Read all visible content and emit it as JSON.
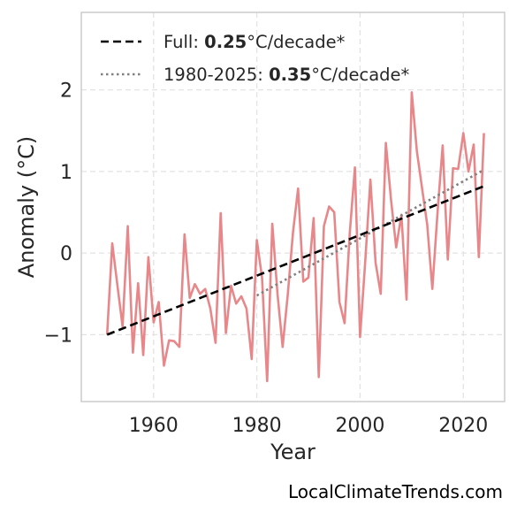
{
  "chart_data": {
    "type": "line",
    "xlabel": "Year",
    "ylabel": "Anomaly (°C)",
    "xlim": [
      1946,
      2028
    ],
    "ylim": [
      -1.82,
      2.95
    ],
    "xticks": [
      1960,
      1980,
      2000,
      2020
    ],
    "yticks": [
      -1,
      0,
      1,
      2
    ],
    "ytick_labels": [
      "−1",
      "0",
      "1",
      "2"
    ],
    "grid": true,
    "legend_position": "top-left",
    "x": [
      1951,
      1952,
      1953,
      1954,
      1955,
      1956,
      1957,
      1958,
      1959,
      1960,
      1961,
      1962,
      1963,
      1964,
      1965,
      1966,
      1967,
      1968,
      1969,
      1970,
      1971,
      1972,
      1973,
      1974,
      1975,
      1976,
      1977,
      1978,
      1979,
      1980,
      1981,
      1982,
      1983,
      1984,
      1985,
      1986,
      1987,
      1988,
      1989,
      1990,
      1991,
      1992,
      1993,
      1994,
      1995,
      1996,
      1997,
      1998,
      1999,
      2000,
      2001,
      2002,
      2003,
      2004,
      2005,
      2006,
      2007,
      2008,
      2009,
      2010,
      2011,
      2012,
      2013,
      2014,
      2015,
      2016,
      2017,
      2018,
      2019,
      2020,
      2021,
      2022,
      2023,
      2024
    ],
    "series": [
      {
        "color": "#e8878a",
        "values": [
          -1.0,
          0.12,
          -0.4,
          -0.9,
          0.33,
          -1.22,
          -0.37,
          -1.25,
          -0.05,
          -0.85,
          -0.6,
          -1.38,
          -1.07,
          -1.08,
          -1.15,
          0.23,
          -0.55,
          -0.38,
          -0.5,
          -0.44,
          -0.68,
          -1.1,
          0.49,
          -0.98,
          -0.4,
          -0.62,
          -0.53,
          -0.68,
          -1.3,
          0.16,
          -0.3,
          -1.57,
          0.36,
          -0.5,
          -1.15,
          -0.5,
          0.25,
          0.79,
          -0.35,
          -0.3,
          0.43,
          -1.52,
          0.33,
          0.57,
          0.5,
          -0.6,
          -0.86,
          0.25,
          1.05,
          -1.03,
          -0.1,
          0.9,
          -0.12,
          -0.5,
          1.35,
          0.65,
          0.07,
          0.47,
          -0.57,
          1.97,
          1.25,
          0.8,
          0.35,
          -0.44,
          0.5,
          1.32,
          -0.08,
          1.04,
          1.03,
          1.47,
          1.0,
          1.33,
          -0.05,
          1.47
        ]
      },
      {
        "name": "Full",
        "trend_label": "0.25",
        "unit_label": "°C/decade*",
        "style": "dashed",
        "color": "#000000",
        "x": [
          1951,
          2024
        ],
        "values": [
          -1.0,
          0.82
        ]
      },
      {
        "name": "1980-2025",
        "trend_label": "0.35",
        "unit_label": "°C/decade*",
        "style": "dotted",
        "color": "#808080",
        "x": [
          1980,
          2024
        ],
        "values": [
          -0.52,
          1.02
        ]
      }
    ]
  },
  "credit": "LocalClimateTrends.com"
}
